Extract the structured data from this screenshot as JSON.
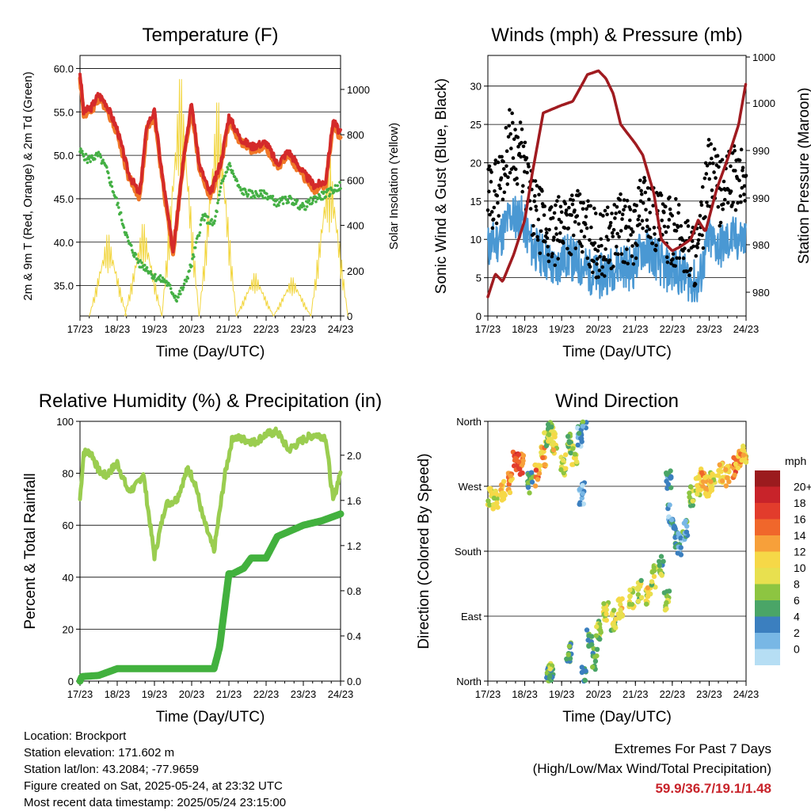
{
  "chart_data": [
    {
      "type": "line",
      "title": "Temperature (F)",
      "xlabel": "Time (Day/UTC)",
      "ylabel": "2m & 9m T (Red, Orange) & 2m Td (Green)",
      "ylabel2": "Solar Insolation (Yellow)",
      "x_ticks": [
        "17/23",
        "18/23",
        "19/23",
        "20/23",
        "21/23",
        "22/23",
        "23/23",
        "24/23"
      ],
      "y_ticks": [
        "35.0",
        "40.0",
        "45.0",
        "50.0",
        "55.0",
        "60.0"
      ],
      "y2_ticks": [
        "0",
        "200",
        "400",
        "600",
        "800",
        "1000"
      ],
      "ylim": [
        31.5,
        61.5
      ],
      "y2lim": [
        0,
        1150
      ],
      "grid": true,
      "series": [
        {
          "name": "2m T",
          "color": "#d42a2a",
          "x": [
            0,
            0.1,
            0.3,
            0.5,
            0.7,
            1.0,
            1.3,
            1.6,
            1.8,
            2.0,
            2.2,
            2.5,
            2.8,
            3.0,
            3.2,
            3.5,
            3.8,
            4.0,
            4.3,
            4.6,
            5.0,
            5.3,
            5.6,
            6.0,
            6.3,
            6.6,
            6.8,
            7.0
          ],
          "values": [
            59.5,
            55.0,
            55.5,
            57.0,
            56.0,
            53.0,
            48.0,
            45.5,
            53.5,
            55.0,
            48.0,
            39.0,
            50.5,
            56.0,
            49.0,
            45.5,
            49.5,
            54.5,
            52.0,
            51.0,
            51.5,
            49.0,
            50.5,
            48.0,
            46.5,
            47.0,
            54.0,
            52.5
          ]
        },
        {
          "name": "9m T",
          "color": "#f07828",
          "x": [
            0,
            0.1,
            0.3,
            0.5,
            0.7,
            1.0,
            1.3,
            1.6,
            1.8,
            2.0,
            2.2,
            2.5,
            2.8,
            3.0,
            3.2,
            3.5,
            3.8,
            4.0,
            4.3,
            4.6,
            5.0,
            5.3,
            5.6,
            6.0,
            6.3,
            6.6,
            6.8,
            7.0
          ],
          "values": [
            59.0,
            54.6,
            55.1,
            56.5,
            55.6,
            52.6,
            47.6,
            45.1,
            53.0,
            54.5,
            47.6,
            38.7,
            50.0,
            55.5,
            48.6,
            45.1,
            49.0,
            54.0,
            51.6,
            50.6,
            51.0,
            48.6,
            50.0,
            47.6,
            46.1,
            46.6,
            53.5,
            52.0
          ]
        },
        {
          "name": "2m Td",
          "color": "#45b045",
          "x": [
            0,
            0.2,
            0.5,
            0.7,
            1.0,
            1.3,
            1.6,
            1.8,
            2.0,
            2.3,
            2.6,
            2.8,
            3.0,
            3.3,
            3.6,
            3.8,
            4.0,
            4.3,
            4.6,
            5.0,
            5.3,
            5.6,
            6.0,
            6.3,
            6.6,
            6.8,
            7.0
          ],
          "values": [
            50.5,
            49.5,
            50.0,
            48.5,
            44.5,
            40.0,
            37.5,
            37.0,
            36.0,
            35.5,
            33.5,
            35.0,
            37.5,
            43.0,
            42.0,
            46.5,
            49.0,
            46.0,
            45.5,
            45.5,
            44.5,
            45.0,
            44.0,
            45.0,
            45.5,
            46.0,
            46.5
          ]
        }
      ],
      "solar_peaks": [
        {
          "x": 0.75,
          "value": 380
        },
        {
          "x": 1.7,
          "value": 430
        },
        {
          "x": 2.7,
          "value": 1110
        },
        {
          "x": 3.7,
          "value": 1000
        },
        {
          "x": 4.7,
          "value": 200
        },
        {
          "x": 5.7,
          "value": 180
        },
        {
          "x": 6.7,
          "value": 740
        }
      ]
    },
    {
      "type": "line",
      "title": "Winds (mph) & Pressure (mb)",
      "xlabel": "Time (Day/UTC)",
      "ylabel": "Sonic Wind & Gust (Blue, Black)",
      "ylabel2": "Station Pressure (Maroon)",
      "x_ticks": [
        "17/23",
        "18/23",
        "19/23",
        "20/23",
        "21/23",
        "22/23",
        "23/23",
        "24/23"
      ],
      "y_ticks": [
        "0",
        "5",
        "10",
        "15",
        "20",
        "25",
        "30"
      ],
      "y2_ticks": [
        "980",
        "980",
        "990",
        "990",
        "1000",
        "1000"
      ],
      "ylim": [
        0,
        34
      ],
      "grid": true,
      "series": [
        {
          "name": "Pressure",
          "color": "#a01b20",
          "x": [
            0,
            0.2,
            0.4,
            0.7,
            1.0,
            1.2,
            1.5,
            2.0,
            2.3,
            2.7,
            3.0,
            3.2,
            3.4,
            3.6,
            4.0,
            4.2,
            4.5,
            4.7,
            5.0,
            5.2,
            5.5,
            5.7,
            5.9,
            6.2,
            6.5,
            6.8,
            7.0
          ],
          "values": [
            2.5,
            5.5,
            4.5,
            8.0,
            12.5,
            18.5,
            26.5,
            27.5,
            28.0,
            31.5,
            32.0,
            31.0,
            29.0,
            25.0,
            22.5,
            21.0,
            16.0,
            10.0,
            8.5,
            9.0,
            10.0,
            12.5,
            11.0,
            16.5,
            20.5,
            25.0,
            30.5
          ]
        },
        {
          "name": "Gust",
          "color": "#000000",
          "x": [
            0,
            0.3,
            0.6,
            0.9,
            1.2,
            1.5,
            1.8,
            2.1,
            2.4,
            2.7,
            3.0,
            3.3,
            3.6,
            3.9,
            4.2,
            4.5,
            4.8,
            5.1,
            5.4,
            5.7,
            6.0,
            6.3,
            6.6,
            6.9
          ],
          "values": [
            15,
            17,
            23,
            21,
            14,
            12,
            10,
            13,
            12,
            11,
            9,
            10,
            12,
            10,
            15,
            13,
            11,
            11,
            9,
            8,
            19,
            16,
            18,
            18
          ]
        },
        {
          "name": "Wind",
          "color": "#4a98d3",
          "x": [
            0,
            0.3,
            0.6,
            0.9,
            1.2,
            1.5,
            1.8,
            2.1,
            2.4,
            2.7,
            3.0,
            3.3,
            3.6,
            3.9,
            4.2,
            4.5,
            4.8,
            5.1,
            5.4,
            5.7,
            6.0,
            6.3,
            6.6,
            6.9
          ],
          "values": [
            9,
            10,
            13,
            13,
            9,
            8,
            6,
            8,
            7,
            6,
            5,
            6,
            7,
            6,
            9,
            8,
            6,
            6,
            5,
            4,
            10,
            9,
            10,
            10
          ]
        }
      ]
    },
    {
      "type": "line",
      "title": "Relative Humidity (%) & Precipitation (in)",
      "xlabel": "Time (Day/UTC)",
      "ylabel": "Percent & Total Rainfall",
      "x_ticks": [
        "17/23",
        "18/23",
        "19/23",
        "20/23",
        "21/23",
        "22/23",
        "23/23",
        "24/23"
      ],
      "y_ticks": [
        "0",
        "20",
        "40",
        "60",
        "80",
        "100"
      ],
      "y2_ticks": [
        "0.0",
        "0.4",
        "0.8",
        "1.2",
        "1.6",
        "2.0"
      ],
      "ylim": [
        0,
        100
      ],
      "y2lim": [
        0,
        2.3
      ],
      "grid": true,
      "series": [
        {
          "name": "Relative Humidity",
          "color": "#9acd50",
          "x": [
            0,
            0.1,
            0.3,
            0.5,
            0.7,
            1.0,
            1.3,
            1.5,
            1.7,
            2.0,
            2.3,
            2.6,
            2.9,
            3.1,
            3.3,
            3.6,
            3.9,
            4.1,
            4.4,
            4.7,
            5.0,
            5.3,
            5.6,
            6.0,
            6.3,
            6.6,
            6.8,
            7.0
          ],
          "values": [
            70,
            88,
            88,
            81,
            79,
            84,
            73,
            75,
            80,
            48,
            68,
            70,
            82,
            76,
            63,
            50,
            80,
            94,
            93,
            92,
            95,
            96,
            89,
            93,
            95,
            94,
            69,
            81
          ]
        },
        {
          "name": "Precipitation",
          "color": "#42b13e",
          "x": [
            0,
            0.05,
            0.5,
            1.0,
            2.0,
            3.0,
            3.6,
            3.75,
            4.0,
            4.1,
            4.4,
            4.6,
            5.0,
            5.3,
            6.0,
            6.5,
            7.0
          ],
          "values": [
            0.0,
            0.04,
            0.05,
            0.11,
            0.11,
            0.11,
            0.11,
            0.3,
            0.95,
            0.95,
            1.0,
            1.09,
            1.09,
            1.28,
            1.38,
            1.42,
            1.48
          ]
        }
      ]
    },
    {
      "type": "scatter",
      "title": "Wind Direction",
      "xlabel": "Time (Day/UTC)",
      "ylabel": "Direction (Colored By Speed)",
      "x_ticks": [
        "17/23",
        "18/23",
        "19/23",
        "20/23",
        "21/23",
        "22/23",
        "23/23",
        "24/23"
      ],
      "y_ticks": [
        "North",
        "East",
        "South",
        "West",
        "North"
      ],
      "ylim": [
        0,
        360
      ],
      "grid": true,
      "legend": {
        "title": "mph",
        "position": "right",
        "labels": [
          "20+",
          "18",
          "16",
          "14",
          "12",
          "10",
          "8",
          "6",
          "4",
          "2",
          "0"
        ],
        "colors": [
          "#9b1b1e",
          "#c8232a",
          "#e23c2c",
          "#f0672b",
          "#f7a03a",
          "#f6d847",
          "#e8e04f",
          "#8dc541",
          "#4aa567",
          "#3b7fbf",
          "#78b7e5",
          "#b6def4"
        ]
      },
      "points": [
        {
          "x": 0.05,
          "dir": 255,
          "speed": 10
        },
        {
          "x": 0.2,
          "dir": 250,
          "speed": 11
        },
        {
          "x": 0.4,
          "dir": 265,
          "speed": 12
        },
        {
          "x": 0.6,
          "dir": 275,
          "speed": 14
        },
        {
          "x": 0.75,
          "dir": 305,
          "speed": 17
        },
        {
          "x": 0.9,
          "dir": 300,
          "speed": 16
        },
        {
          "x": 1.15,
          "dir": 275,
          "speed": 6
        },
        {
          "x": 1.35,
          "dir": 285,
          "speed": 15
        },
        {
          "x": 1.5,
          "dir": 310,
          "speed": 13
        },
        {
          "x": 1.6,
          "dir": 340,
          "speed": 9
        },
        {
          "x": 1.7,
          "dir": 350,
          "speed": 8
        },
        {
          "x": 1.8,
          "dir": 330,
          "speed": 11
        },
        {
          "x": 1.65,
          "dir": 5,
          "speed": 6
        },
        {
          "x": 1.7,
          "dir": 20,
          "speed": 7
        },
        {
          "x": 2.05,
          "dir": 300,
          "speed": 9
        },
        {
          "x": 2.2,
          "dir": 330,
          "speed": 8
        },
        {
          "x": 2.35,
          "dir": 315,
          "speed": 10
        },
        {
          "x": 2.2,
          "dir": 40,
          "speed": 6
        },
        {
          "x": 2.5,
          "dir": 340,
          "speed": 3
        },
        {
          "x": 2.55,
          "dir": 260,
          "speed": 2
        },
        {
          "x": 2.6,
          "dir": 5,
          "speed": 5
        },
        {
          "x": 2.75,
          "dir": 60,
          "speed": 7
        },
        {
          "x": 2.9,
          "dir": 30,
          "speed": 6
        },
        {
          "x": 3.0,
          "dir": 70,
          "speed": 8
        },
        {
          "x": 3.2,
          "dir": 95,
          "speed": 10
        },
        {
          "x": 3.4,
          "dir": 85,
          "speed": 9
        },
        {
          "x": 3.6,
          "dir": 100,
          "speed": 12
        },
        {
          "x": 3.9,
          "dir": 115,
          "speed": 10
        },
        {
          "x": 4.1,
          "dir": 125,
          "speed": 9
        },
        {
          "x": 4.35,
          "dir": 120,
          "speed": 11
        },
        {
          "x": 4.5,
          "dir": 145,
          "speed": 9
        },
        {
          "x": 4.7,
          "dir": 160,
          "speed": 7
        },
        {
          "x": 4.85,
          "dir": 110,
          "speed": 8
        },
        {
          "x": 4.9,
          "dir": 280,
          "speed": 4
        },
        {
          "x": 4.95,
          "dir": 230,
          "speed": 3
        },
        {
          "x": 5.1,
          "dir": 200,
          "speed": 4
        },
        {
          "x": 5.2,
          "dir": 190,
          "speed": 3
        },
        {
          "x": 5.35,
          "dir": 210,
          "speed": 5
        },
        {
          "x": 5.5,
          "dir": 255,
          "speed": 9
        },
        {
          "x": 5.7,
          "dir": 270,
          "speed": 10
        },
        {
          "x": 5.8,
          "dir": 285,
          "speed": 14
        },
        {
          "x": 5.95,
          "dir": 270,
          "speed": 12
        },
        {
          "x": 6.1,
          "dir": 275,
          "speed": 11
        },
        {
          "x": 6.3,
          "dir": 290,
          "speed": 13
        },
        {
          "x": 6.5,
          "dir": 285,
          "speed": 12
        },
        {
          "x": 6.7,
          "dir": 295,
          "speed": 15
        },
        {
          "x": 6.85,
          "dir": 305,
          "speed": 14
        },
        {
          "x": 6.95,
          "dir": 315,
          "speed": 11
        }
      ]
    }
  ],
  "info": {
    "location": "Location: Brockport",
    "elevation": "Station elevation: 171.602 m",
    "latlon": "Station lat/lon: 43.2084; -77.9659",
    "created": "Figure created on Sat, 2025-05-24, at 23:32 UTC",
    "timestamp": "Most recent data timestamp: 2025/05/24 23:15:00"
  },
  "extremes": {
    "line1": "Extremes For Past 7 Days",
    "line2": "(High/Low/Max Wind/Total Precipitation)",
    "values": "59.9/36.7/19.1/1.48"
  }
}
